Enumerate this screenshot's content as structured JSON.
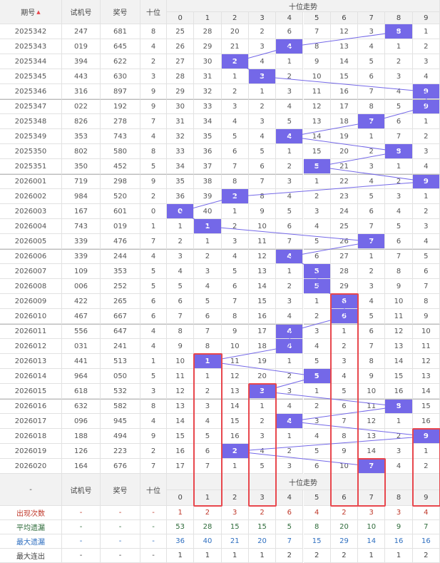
{
  "header": {
    "columns": [
      "期号",
      "试机号",
      "奖号",
      "十位"
    ],
    "trend_title": "十位走势",
    "digits": [
      "0",
      "1",
      "2",
      "3",
      "4",
      "5",
      "6",
      "7",
      "8",
      "9"
    ]
  },
  "rows": [
    {
      "issue": "2025342",
      "test": "247",
      "prize": "681",
      "tens": 8,
      "cells": [
        25,
        28,
        20,
        2,
        6,
        7,
        12,
        3,
        8,
        1
      ]
    },
    {
      "issue": "2025343",
      "test": "019",
      "prize": "645",
      "tens": 4,
      "cells": [
        26,
        29,
        21,
        3,
        4,
        8,
        13,
        4,
        1,
        2
      ]
    },
    {
      "issue": "2025344",
      "test": "394",
      "prize": "622",
      "tens": 2,
      "cells": [
        27,
        30,
        2,
        4,
        1,
        9,
        14,
        5,
        2,
        3
      ]
    },
    {
      "issue": "2025345",
      "test": "443",
      "prize": "630",
      "tens": 3,
      "cells": [
        28,
        31,
        1,
        3,
        2,
        10,
        15,
        6,
        3,
        4
      ]
    },
    {
      "issue": "2025346",
      "test": "316",
      "prize": "897",
      "tens": 9,
      "cells": [
        29,
        32,
        2,
        1,
        3,
        11,
        16,
        7,
        4,
        9
      ]
    },
    {
      "issue": "2025347",
      "test": "022",
      "prize": "192",
      "tens": 9,
      "cells": [
        30,
        33,
        3,
        2,
        4,
        12,
        17,
        8,
        5,
        9
      ]
    },
    {
      "issue": "2025348",
      "test": "826",
      "prize": "278",
      "tens": 7,
      "cells": [
        31,
        34,
        4,
        3,
        5,
        13,
        18,
        7,
        6,
        1
      ]
    },
    {
      "issue": "2025349",
      "test": "353",
      "prize": "743",
      "tens": 4,
      "cells": [
        32,
        35,
        5,
        4,
        4,
        14,
        19,
        1,
        7,
        2
      ]
    },
    {
      "issue": "2025350",
      "test": "802",
      "prize": "580",
      "tens": 8,
      "cells": [
        33,
        36,
        6,
        5,
        1,
        15,
        20,
        2,
        8,
        3
      ]
    },
    {
      "issue": "2025351",
      "test": "350",
      "prize": "452",
      "tens": 5,
      "cells": [
        34,
        37,
        7,
        6,
        2,
        5,
        21,
        3,
        1,
        4
      ]
    },
    {
      "issue": "2026001",
      "test": "719",
      "prize": "298",
      "tens": 9,
      "cells": [
        35,
        38,
        8,
        7,
        3,
        1,
        22,
        4,
        2,
        9
      ]
    },
    {
      "issue": "2026002",
      "test": "984",
      "prize": "520",
      "tens": 2,
      "cells": [
        36,
        39,
        2,
        8,
        4,
        2,
        23,
        5,
        3,
        1
      ]
    },
    {
      "issue": "2026003",
      "test": "167",
      "prize": "601",
      "tens": 0,
      "cells": [
        0,
        40,
        1,
        9,
        5,
        3,
        24,
        6,
        4,
        2
      ]
    },
    {
      "issue": "2026004",
      "test": "743",
      "prize": "019",
      "tens": 1,
      "cells": [
        1,
        1,
        2,
        10,
        6,
        4,
        25,
        7,
        5,
        3
      ]
    },
    {
      "issue": "2026005",
      "test": "339",
      "prize": "476",
      "tens": 7,
      "cells": [
        2,
        1,
        3,
        11,
        7,
        5,
        26,
        7,
        6,
        4
      ]
    },
    {
      "issue": "2026006",
      "test": "339",
      "prize": "244",
      "tens": 4,
      "cells": [
        3,
        2,
        4,
        12,
        4,
        6,
        27,
        1,
        7,
        5
      ]
    },
    {
      "issue": "2026007",
      "test": "109",
      "prize": "353",
      "tens": 5,
      "cells": [
        4,
        3,
        5,
        13,
        1,
        5,
        28,
        2,
        8,
        6
      ]
    },
    {
      "issue": "2026008",
      "test": "006",
      "prize": "252",
      "tens": 5,
      "cells": [
        5,
        4,
        6,
        14,
        2,
        5,
        29,
        3,
        9,
        7
      ]
    },
    {
      "issue": "2026009",
      "test": "422",
      "prize": "265",
      "tens": 6,
      "cells": [
        6,
        5,
        7,
        15,
        3,
        1,
        6,
        4,
        10,
        8
      ]
    },
    {
      "issue": "2026010",
      "test": "467",
      "prize": "667",
      "tens": 6,
      "cells": [
        7,
        6,
        8,
        16,
        4,
        2,
        6,
        5,
        11,
        9
      ]
    },
    {
      "issue": "2026011",
      "test": "556",
      "prize": "647",
      "tens": 4,
      "cells": [
        8,
        7,
        9,
        17,
        4,
        3,
        1,
        6,
        12,
        10
      ]
    },
    {
      "issue": "2026012",
      "test": "031",
      "prize": "241",
      "tens": 4,
      "cells": [
        9,
        8,
        10,
        18,
        4,
        4,
        2,
        7,
        13,
        11
      ]
    },
    {
      "issue": "2026013",
      "test": "441",
      "prize": "513",
      "tens": 1,
      "cells": [
        10,
        1,
        11,
        19,
        1,
        5,
        3,
        8,
        14,
        12
      ]
    },
    {
      "issue": "2026014",
      "test": "964",
      "prize": "050",
      "tens": 5,
      "cells": [
        11,
        1,
        12,
        20,
        2,
        5,
        4,
        9,
        15,
        13
      ]
    },
    {
      "issue": "2026015",
      "test": "618",
      "prize": "532",
      "tens": 3,
      "cells": [
        12,
        2,
        13,
        3,
        3,
        1,
        5,
        10,
        16,
        14
      ]
    },
    {
      "issue": "2026016",
      "test": "632",
      "prize": "582",
      "tens": 8,
      "cells": [
        13,
        3,
        14,
        1,
        4,
        2,
        6,
        11,
        8,
        15
      ]
    },
    {
      "issue": "2026017",
      "test": "096",
      "prize": "945",
      "tens": 4,
      "cells": [
        14,
        4,
        15,
        2,
        4,
        3,
        7,
        12,
        1,
        16
      ]
    },
    {
      "issue": "2026018",
      "test": "188",
      "prize": "494",
      "tens": 9,
      "cells": [
        15,
        5,
        16,
        3,
        1,
        4,
        8,
        13,
        2,
        9
      ]
    },
    {
      "issue": "2026019",
      "test": "126",
      "prize": "223",
      "tens": 2,
      "cells": [
        16,
        6,
        2,
        4,
        2,
        5,
        9,
        14,
        3,
        1
      ]
    },
    {
      "issue": "2026020",
      "test": "164",
      "prize": "676",
      "tens": 7,
      "cells": [
        17,
        7,
        1,
        5,
        3,
        6,
        10,
        7,
        4,
        2
      ]
    }
  ],
  "footer_header": {
    "columns": [
      "-",
      "试机号",
      "奖号",
      "十位"
    ],
    "trend_title": "十位走势",
    "digits": [
      "0",
      "1",
      "2",
      "3",
      "4",
      "5",
      "6",
      "7",
      "8",
      "9"
    ]
  },
  "stats": [
    {
      "label": "出现次数",
      "dashes": [
        "-",
        "-",
        "-"
      ],
      "values": [
        1,
        2,
        3,
        2,
        6,
        4,
        2,
        3,
        3,
        4
      ]
    },
    {
      "label": "平均遗漏",
      "dashes": [
        "-",
        "-",
        "-"
      ],
      "values": [
        53,
        28,
        15,
        15,
        5,
        8,
        20,
        10,
        9,
        7
      ]
    },
    {
      "label": "最大遗漏",
      "dashes": [
        "-",
        "-",
        "-"
      ],
      "values": [
        36,
        40,
        21,
        20,
        7,
        15,
        29,
        14,
        16,
        16
      ]
    },
    {
      "label": "最大连出",
      "dashes": [
        "-",
        "-",
        "-"
      ],
      "values": [
        1,
        1,
        1,
        1,
        2,
        2,
        2,
        1,
        1,
        2
      ]
    }
  ]
}
